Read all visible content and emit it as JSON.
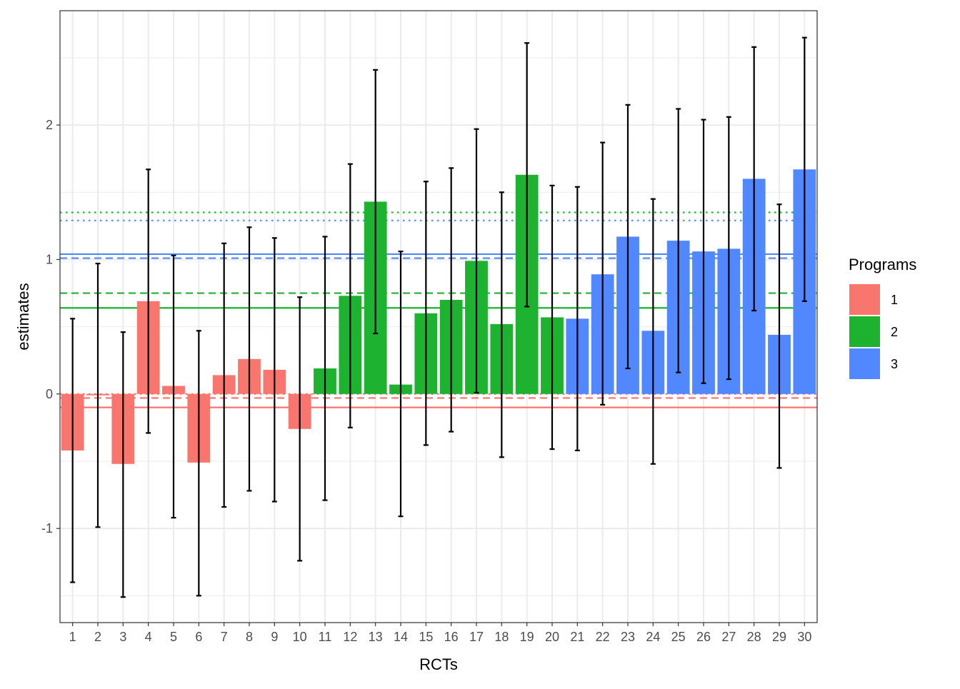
{
  "chart_data": {
    "type": "bar",
    "xlabel": "RCTs",
    "ylabel": "estimates",
    "ylim": [
      -1.7,
      2.85
    ],
    "y_ticks": [
      -1,
      0,
      1,
      2
    ],
    "y_tick_labels": [
      "-1",
      "0",
      "1",
      "2"
    ],
    "grid": true,
    "legend": {
      "title": "Programs",
      "placement": "right",
      "items": [
        {
          "label": "1",
          "color": "#F8766D"
        },
        {
          "label": "2",
          "color": "#1DB330"
        },
        {
          "label": "3",
          "color": "#5288FF"
        }
      ]
    },
    "categories": [
      "1",
      "2",
      "3",
      "4",
      "5",
      "6",
      "7",
      "8",
      "9",
      "10",
      "11",
      "12",
      "13",
      "14",
      "15",
      "16",
      "17",
      "18",
      "19",
      "20",
      "21",
      "22",
      "23",
      "24",
      "25",
      "26",
      "27",
      "28",
      "29",
      "30"
    ],
    "program": [
      1,
      1,
      1,
      1,
      1,
      1,
      1,
      1,
      1,
      1,
      2,
      2,
      2,
      2,
      2,
      2,
      2,
      2,
      2,
      2,
      3,
      3,
      3,
      3,
      3,
      3,
      3,
      3,
      3,
      3
    ],
    "values": [
      -0.42,
      -0.01,
      -0.52,
      0.69,
      0.06,
      -0.51,
      0.14,
      0.26,
      0.18,
      -0.26,
      0.19,
      0.73,
      1.43,
      0.07,
      0.6,
      0.7,
      0.99,
      0.52,
      1.63,
      0.57,
      0.56,
      0.89,
      1.17,
      0.47,
      1.14,
      1.06,
      1.08,
      1.6,
      0.44,
      1.67
    ],
    "error_lower": [
      -1.4,
      -0.99,
      -1.51,
      -0.29,
      -0.92,
      -1.5,
      -0.84,
      -0.72,
      -0.8,
      -1.24,
      -0.79,
      -0.25,
      0.45,
      -0.91,
      -0.38,
      -0.28,
      0.01,
      -0.47,
      0.65,
      -0.41,
      -0.42,
      -0.08,
      0.19,
      -0.52,
      0.16,
      0.08,
      0.11,
      0.62,
      -0.55,
      0.69
    ],
    "error_upper": [
      0.56,
      0.97,
      0.46,
      1.67,
      1.03,
      0.47,
      1.12,
      1.24,
      1.16,
      0.72,
      1.17,
      1.71,
      2.41,
      1.06,
      1.58,
      1.68,
      1.97,
      1.5,
      2.61,
      1.55,
      1.54,
      1.87,
      2.15,
      1.45,
      2.12,
      2.04,
      2.06,
      2.58,
      1.41,
      2.65
    ],
    "reference_lines": [
      {
        "program": "1",
        "style": "solid",
        "y": -0.1,
        "color": "#F8766D"
      },
      {
        "program": "1",
        "style": "dashed",
        "y": -0.03,
        "color": "#F8766D"
      },
      {
        "program": "1",
        "style": "dotted",
        "y": 0.0,
        "color": "#F8766D"
      },
      {
        "program": "2",
        "style": "solid",
        "y": 0.64,
        "color": "#1DB330"
      },
      {
        "program": "2",
        "style": "dashed",
        "y": 0.75,
        "color": "#1DB330"
      },
      {
        "program": "2",
        "style": "dotted",
        "y": 1.35,
        "color": "#1DB330"
      },
      {
        "program": "3",
        "style": "solid",
        "y": 1.04,
        "color": "#5288FF"
      },
      {
        "program": "3",
        "style": "dashed",
        "y": 1.01,
        "color": "#5288FF"
      },
      {
        "program": "3",
        "style": "dotted",
        "y": 1.29,
        "color": "#5288FF"
      }
    ]
  }
}
